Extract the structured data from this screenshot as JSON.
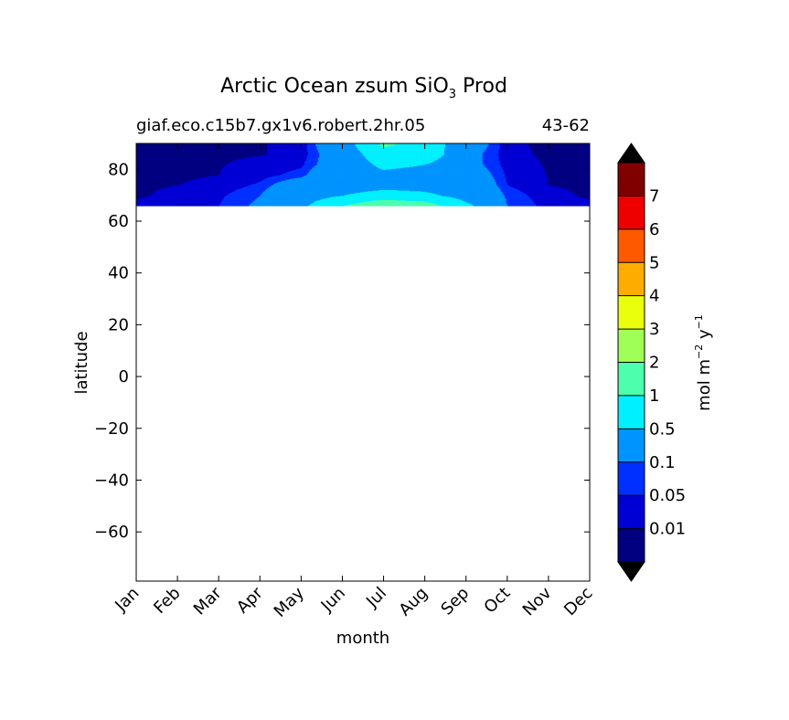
{
  "chart_data": {
    "type": "heatmap",
    "title_main": "Arctic Ocean zsum SiO",
    "title_sub": "3",
    "title_tail": " Prod",
    "subtitle_left": "giaf.eco.c15b7.gx1v6.robert.2hr.05",
    "subtitle_right": "43-62",
    "xlabel": "month",
    "ylabel": "latitude",
    "x_ticks": [
      "Jan",
      "Feb",
      "Mar",
      "Apr",
      "May",
      "Jun",
      "Jul",
      "Aug",
      "Sep",
      "Oct",
      "Nov",
      "Dec"
    ],
    "y_ticks": [
      80,
      60,
      40,
      20,
      0,
      -20,
      -40,
      -60
    ],
    "ylim": [
      -79,
      90
    ],
    "data_lat_range": [
      66,
      90
    ],
    "colorbar": {
      "label_main": "mol m",
      "label_exp1": "−2",
      "label_mid": " y",
      "label_exp2": "−1",
      "tick_labels": [
        "0.01",
        "0.05",
        "0.1",
        "0.5",
        "1",
        "2",
        "3",
        "4",
        "5",
        "6",
        "7"
      ],
      "levels": [
        0,
        0.01,
        0.05,
        0.1,
        0.5,
        1,
        2,
        3,
        4,
        5,
        6,
        7,
        8
      ],
      "colors": [
        "#000080",
        "#0000d4",
        "#0030ff",
        "#0094ff",
        "#00f0ff",
        "#4dffad",
        "#a0ff56",
        "#e9ff0c",
        "#ffac00",
        "#ff5900",
        "#ee0000",
        "#800000"
      ],
      "under_color": "#000000",
      "over_color": "#000000"
    },
    "months": [
      1,
      2,
      3,
      4,
      5,
      6,
      7,
      8,
      9,
      10,
      11,
      12
    ],
    "lat_rows": [
      66,
      70,
      74,
      78,
      82,
      86,
      90
    ],
    "values": [
      [
        0.02,
        0.03,
        0.05,
        0.12,
        0.4,
        1.0,
        1.5,
        1.3,
        0.6,
        0.1,
        0.03,
        0.02
      ],
      [
        0.005,
        0.02,
        0.04,
        0.1,
        0.3,
        0.5,
        0.7,
        0.6,
        0.35,
        0.08,
        0.02,
        0.005
      ],
      [
        0.005,
        0.01,
        0.02,
        0.06,
        0.2,
        0.3,
        0.35,
        0.35,
        0.25,
        0.05,
        0.01,
        0.005
      ],
      [
        0.005,
        0.005,
        0.01,
        0.03,
        0.07,
        0.3,
        0.4,
        0.35,
        0.2,
        0.04,
        0.008,
        0.005
      ],
      [
        0.0005,
        0.005,
        0.008,
        0.02,
        0.04,
        0.2,
        0.6,
        0.5,
        0.15,
        0.03,
        0.006,
        0.0005
      ],
      [
        0.0005,
        0.005,
        0.005,
        0.008,
        0.02,
        0.2,
        0.8,
        0.8,
        0.15,
        0.02,
        0.004,
        0.0005
      ],
      [
        0.0005,
        0.005,
        0.005,
        0.008,
        0.02,
        0.25,
        1.1,
        0.8,
        0.2,
        0.02,
        0.0005,
        0.0005
      ]
    ]
  }
}
